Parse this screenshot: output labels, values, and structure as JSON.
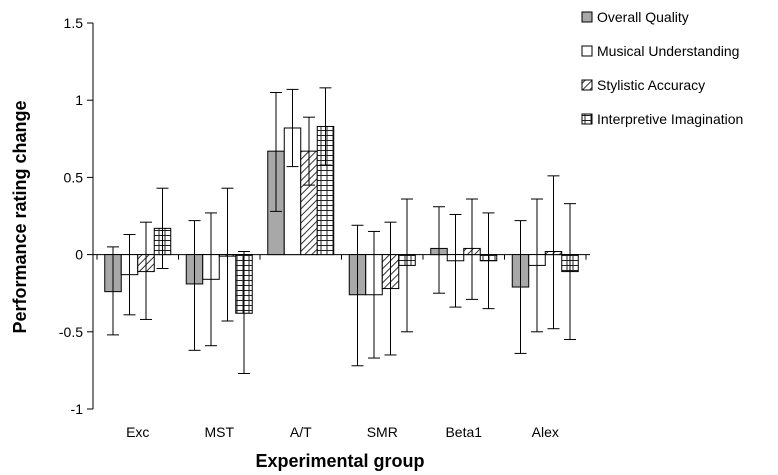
{
  "chart_data": {
    "type": "bar",
    "xlabel": "Experimental group",
    "ylabel": "Performance rating change",
    "ylim": [
      -1,
      1.5
    ],
    "yticks": [
      -1,
      -0.5,
      0,
      0.5,
      1,
      1.5
    ],
    "ytick_labels": [
      "-1",
      "-0.5",
      "0",
      "0.5",
      "1",
      "1.5"
    ],
    "grid": false,
    "legend_position": "top-right",
    "categories": [
      "Exc",
      "MST",
      "A/T",
      "SMR",
      "Beta1",
      "Alex"
    ],
    "series": [
      {
        "name": "Overall Quality",
        "pattern": "gray-fill",
        "values": [
          -0.24,
          -0.19,
          0.67,
          -0.26,
          0.04,
          -0.21
        ],
        "err_upper": [
          0.05,
          0.22,
          1.05,
          0.19,
          0.31,
          0.22
        ],
        "err_lower": [
          -0.52,
          -0.62,
          0.28,
          -0.72,
          -0.25,
          -0.64
        ]
      },
      {
        "name": "Musical Understanding",
        "pattern": "white-fill",
        "values": [
          -0.13,
          -0.16,
          0.82,
          -0.26,
          -0.04,
          -0.07
        ],
        "err_upper": [
          0.13,
          0.27,
          1.07,
          0.15,
          0.26,
          0.36
        ],
        "err_lower": [
          -0.39,
          -0.59,
          0.57,
          -0.67,
          -0.34,
          -0.5
        ]
      },
      {
        "name": "Stylistic Accuracy",
        "pattern": "diagonal-hatch",
        "values": [
          -0.11,
          -0.01,
          0.67,
          -0.22,
          0.04,
          0.02
        ],
        "err_upper": [
          0.21,
          0.43,
          0.89,
          0.21,
          0.36,
          0.51
        ],
        "err_lower": [
          -0.42,
          -0.43,
          0.45,
          -0.65,
          -0.29,
          -0.48
        ]
      },
      {
        "name": "Interpretive Imagination",
        "pattern": "grid-hatch",
        "values": [
          0.17,
          -0.38,
          0.83,
          -0.07,
          -0.04,
          -0.11
        ],
        "err_upper": [
          0.43,
          0.02,
          1.08,
          0.36,
          0.27,
          0.33
        ],
        "err_lower": [
          -0.09,
          -0.77,
          0.58,
          -0.5,
          -0.35,
          -0.55
        ]
      }
    ]
  }
}
